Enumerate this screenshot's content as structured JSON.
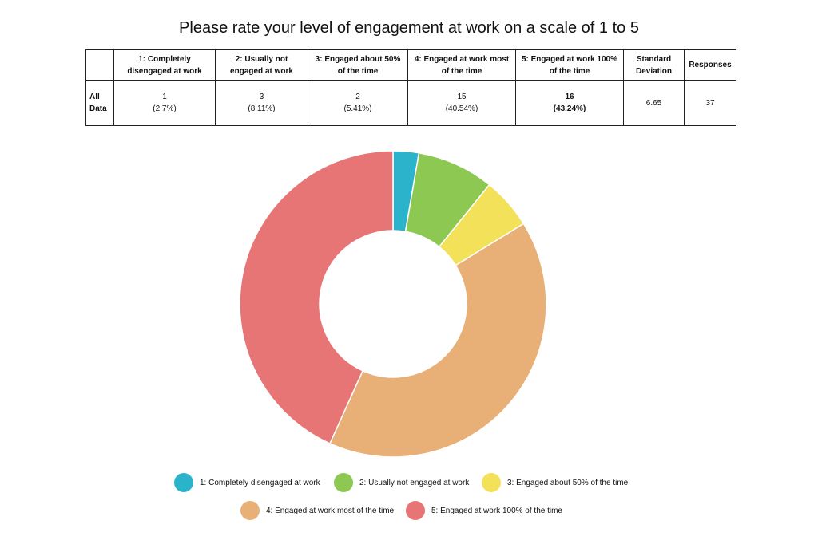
{
  "title": "Please rate your level of engagement at work on a scale of 1 to 5",
  "table": {
    "headers": [
      "",
      "1: Completely disengaged at work",
      "2: Usually not engaged at work",
      "3: Engaged about 50% of the time",
      "4: Engaged at work most of the time",
      "5: Engaged at work 100% of the time",
      "Standard Deviation",
      "Responses"
    ],
    "row_label": "All Data",
    "cells": [
      {
        "count": "1",
        "pct": "(2.7%)"
      },
      {
        "count": "3",
        "pct": "(8.11%)"
      },
      {
        "count": "2",
        "pct": "(5.41%)"
      },
      {
        "count": "15",
        "pct": "(40.54%)"
      },
      {
        "count": "16",
        "pct": "(43.24%)"
      }
    ],
    "std_dev": "6.65",
    "responses": "37"
  },
  "chart_data": {
    "type": "pie",
    "donut": true,
    "categories": [
      "1: Completely disengaged at work",
      "2: Usually not engaged at work",
      "3: Engaged about 50% of the time",
      "4: Engaged at work most of the time",
      "5: Engaged at work 100% of the time"
    ],
    "values": [
      1,
      3,
      2,
      15,
      16
    ],
    "percentages": [
      2.7,
      8.11,
      5.41,
      40.54,
      43.24
    ],
    "colors": [
      "#2bb3cc",
      "#8dc853",
      "#f3e15a",
      "#e8b077",
      "#e77575"
    ],
    "legend_position": "bottom"
  }
}
